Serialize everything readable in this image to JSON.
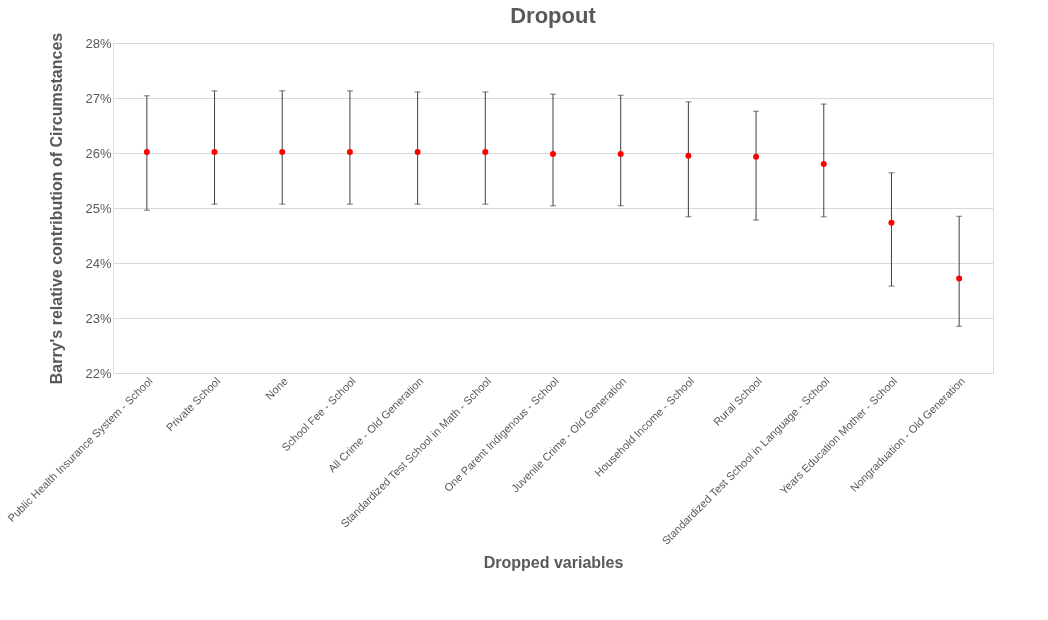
{
  "chart_data": {
    "type": "scatter",
    "title": "Dropout",
    "xlabel": "Dropped variables",
    "ylabel": "Barry's relative contribution of Circumstances",
    "categories": [
      "Public Health Insurance System - School",
      "Private School",
      "None",
      "School Fee - School",
      "All Crime - Old Generation",
      "Standardized Test School in Math - School",
      "One Parent Indigenous - School",
      "Juvenile Crime - Old Generation",
      "Household Income - School",
      "Rural School",
      "Standardized Test School in Language - School",
      "Years Education Mother - School",
      "Nongraduation - Old Generation"
    ],
    "series": [
      {
        "color": "#ff0000",
        "values": [
          26.02,
          26.02,
          26.02,
          26.02,
          26.02,
          26.02,
          25.98,
          25.98,
          25.95,
          25.93,
          25.8,
          24.73,
          23.72
        ],
        "errors": [
          [
            24.96,
            27.04
          ],
          [
            25.07,
            27.13
          ],
          [
            25.07,
            27.13
          ],
          [
            25.07,
            27.13
          ],
          [
            25.07,
            27.11
          ],
          [
            25.07,
            27.11
          ],
          [
            25.04,
            27.07
          ],
          [
            25.04,
            27.05
          ],
          [
            24.84,
            26.93
          ],
          [
            24.78,
            26.76
          ],
          [
            24.84,
            26.89
          ],
          [
            23.58,
            25.64
          ],
          [
            22.85,
            24.85
          ]
        ]
      }
    ],
    "ylim": [
      22,
      28
    ],
    "yticks": [
      {
        "value": 22,
        "label": "22%"
      },
      {
        "value": 23,
        "label": "23%"
      },
      {
        "value": 24,
        "label": "24%"
      },
      {
        "value": 25,
        "label": "25%"
      },
      {
        "value": 26,
        "label": "26%"
      },
      {
        "value": 27,
        "label": "27%"
      },
      {
        "value": 28,
        "label": "28%"
      }
    ],
    "grid": "y",
    "marker": "circle"
  }
}
